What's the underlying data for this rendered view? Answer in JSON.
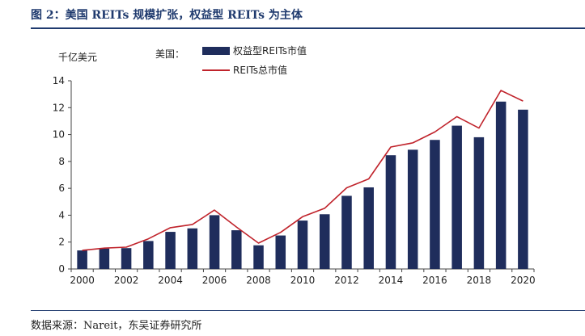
{
  "figure": {
    "title": "图 2：美国 REITs 规模扩张，权益型 REITs 为主体",
    "source": "数据来源：Nareit，东吴证券研究所"
  },
  "chart_data": {
    "type": "bar",
    "ylabel": "千亿美元",
    "region_label": "美国：",
    "ylim": [
      0,
      14
    ],
    "yticks": [
      0,
      2,
      4,
      6,
      8,
      10,
      12,
      14
    ],
    "x": [
      2000,
      2001,
      2002,
      2003,
      2004,
      2005,
      2006,
      2007,
      2008,
      2009,
      2010,
      2011,
      2012,
      2013,
      2014,
      2015,
      2016,
      2017,
      2018,
      2019,
      2020
    ],
    "xtick_labels": [
      "2000",
      "2002",
      "2004",
      "2006",
      "2008",
      "2010",
      "2012",
      "2014",
      "2016",
      "2018",
      "2020"
    ],
    "legend_position": "top-center",
    "grid": false,
    "series": [
      {
        "name": "权益型REITs市值",
        "kind": "bar",
        "color": "#1f2d5c",
        "values": [
          1.38,
          1.52,
          1.55,
          2.08,
          2.76,
          3.02,
          4.0,
          2.88,
          1.76,
          2.49,
          3.6,
          4.07,
          5.44,
          6.07,
          8.46,
          8.87,
          9.6,
          10.66,
          9.8,
          12.45,
          11.85
        ]
      },
      {
        "name": "REITs总市值",
        "kind": "line",
        "color": "#c0232b",
        "values": [
          1.39,
          1.55,
          1.62,
          2.24,
          3.07,
          3.31,
          4.38,
          3.12,
          1.92,
          2.72,
          3.89,
          4.51,
          6.04,
          6.7,
          9.07,
          9.38,
          10.19,
          11.33,
          10.48,
          13.28,
          12.49
        ]
      }
    ]
  }
}
